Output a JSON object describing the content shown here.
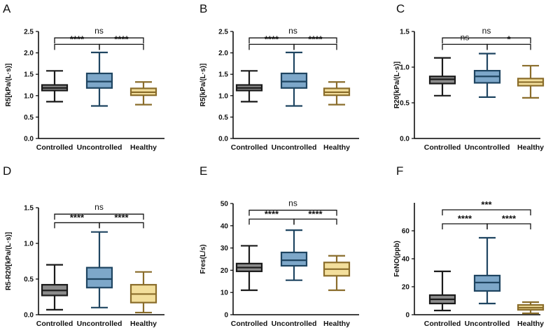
{
  "chart_data": [
    {
      "type": "box",
      "panel": "A",
      "ylabel": "R5[kPa/(L·s)]",
      "ylim": [
        0,
        2.5
      ],
      "yticks": [
        "0.0",
        "0.5",
        "1.0",
        "1.5",
        "2.0",
        "2.5"
      ],
      "categories": [
        "Controlled",
        "Uncontrolled",
        "Healthy"
      ],
      "colors": [
        {
          "fill": "#8c8c8c",
          "stroke": "#1a1a1a"
        },
        {
          "fill": "#7da7c9",
          "stroke": "#1f4561"
        },
        {
          "fill": "#f3df9c",
          "stroke": "#8a6d2b"
        }
      ],
      "boxes": [
        {
          "min": 0.86,
          "q1": 1.12,
          "median": 1.18,
          "q3": 1.25,
          "max": 1.58
        },
        {
          "min": 0.76,
          "q1": 1.18,
          "median": 1.33,
          "q3": 1.52,
          "max": 2.01
        },
        {
          "min": 0.79,
          "q1": 1.01,
          "median": 1.08,
          "q3": 1.17,
          "max": 1.32
        }
      ],
      "comparisons": [
        {
          "from": 0,
          "to": 2,
          "label": "ns",
          "y": 2.35
        },
        {
          "from": 0,
          "to": 1,
          "label": "****",
          "y": 2.2
        },
        {
          "from": 1,
          "to": 2,
          "label": "****",
          "y": 2.2
        }
      ]
    },
    {
      "type": "box",
      "panel": "B",
      "ylabel": "R5[kPa/(L·s)]",
      "ylim": [
        0,
        2.5
      ],
      "yticks": [
        "0.0",
        "0.5",
        "1.0",
        "1.5",
        "2.0",
        "2.5"
      ],
      "categories": [
        "Controlled",
        "Uncontrolled",
        "Healthy"
      ],
      "colors": [
        {
          "fill": "#8c8c8c",
          "stroke": "#1a1a1a"
        },
        {
          "fill": "#7da7c9",
          "stroke": "#1f4561"
        },
        {
          "fill": "#f3df9c",
          "stroke": "#8a6d2b"
        }
      ],
      "boxes": [
        {
          "min": 0.86,
          "q1": 1.12,
          "median": 1.18,
          "q3": 1.25,
          "max": 1.58
        },
        {
          "min": 0.76,
          "q1": 1.18,
          "median": 1.33,
          "q3": 1.52,
          "max": 2.01
        },
        {
          "min": 0.79,
          "q1": 1.01,
          "median": 1.08,
          "q3": 1.17,
          "max": 1.32
        }
      ],
      "comparisons": [
        {
          "from": 0,
          "to": 2,
          "label": "ns",
          "y": 2.35
        },
        {
          "from": 0,
          "to": 1,
          "label": "****",
          "y": 2.2
        },
        {
          "from": 1,
          "to": 2,
          "label": "****",
          "y": 2.2
        }
      ]
    },
    {
      "type": "box",
      "panel": "C",
      "ylabel": "R20[kPa/(L·s)]",
      "ylim": [
        0,
        1.5
      ],
      "yticks": [
        "0.0",
        "0.5",
        "1.0",
        "1.5"
      ],
      "categories": [
        "Controlled",
        "Uncontrolled",
        "Healthy"
      ],
      "colors": [
        {
          "fill": "#8c8c8c",
          "stroke": "#1a1a1a"
        },
        {
          "fill": "#7da7c9",
          "stroke": "#1f4561"
        },
        {
          "fill": "#f3df9c",
          "stroke": "#8a6d2b"
        }
      ],
      "boxes": [
        {
          "min": 0.6,
          "q1": 0.77,
          "median": 0.83,
          "q3": 0.87,
          "max": 1.13
        },
        {
          "min": 0.58,
          "q1": 0.78,
          "median": 0.87,
          "q3": 0.95,
          "max": 1.19
        },
        {
          "min": 0.57,
          "q1": 0.74,
          "median": 0.79,
          "q3": 0.84,
          "max": 1.02
        }
      ],
      "comparisons": [
        {
          "from": 0,
          "to": 2,
          "label": "ns",
          "y": 1.41
        },
        {
          "from": 0,
          "to": 1,
          "label": "ns",
          "y": 1.32
        },
        {
          "from": 1,
          "to": 2,
          "label": "*",
          "y": 1.32
        }
      ]
    },
    {
      "type": "box",
      "panel": "D",
      "ylabel": "R5-R20[kPa/(L·s)]",
      "ylim": [
        0,
        1.5
      ],
      "yticks": [
        "0.0",
        "0.5",
        "1.0",
        "1.5"
      ],
      "categories": [
        "Controlled",
        "Uncontrolled",
        "Healthy"
      ],
      "colors": [
        {
          "fill": "#8c8c8c",
          "stroke": "#1a1a1a"
        },
        {
          "fill": "#7da7c9",
          "stroke": "#1f4561"
        },
        {
          "fill": "#f3df9c",
          "stroke": "#8a6d2b"
        }
      ],
      "boxes": [
        {
          "min": 0.07,
          "q1": 0.27,
          "median": 0.34,
          "q3": 0.42,
          "max": 0.7
        },
        {
          "min": 0.1,
          "q1": 0.38,
          "median": 0.5,
          "q3": 0.66,
          "max": 1.16
        },
        {
          "min": 0.03,
          "q1": 0.17,
          "median": 0.29,
          "q3": 0.42,
          "max": 0.6
        }
      ],
      "comparisons": [
        {
          "from": 0,
          "to": 2,
          "label": "ns",
          "y": 1.41
        },
        {
          "from": 0,
          "to": 1,
          "label": "****",
          "y": 1.29
        },
        {
          "from": 1,
          "to": 2,
          "label": "****",
          "y": 1.29
        }
      ]
    },
    {
      "type": "box",
      "panel": "E",
      "ylabel": "Fres(L/s)",
      "ylim": [
        0,
        50
      ],
      "yticks": [
        "0",
        "10",
        "20",
        "30",
        "40",
        "50"
      ],
      "categories": [
        "Controlled",
        "Uncontrolled",
        "Healthy"
      ],
      "colors": [
        {
          "fill": "#8c8c8c",
          "stroke": "#1a1a1a"
        },
        {
          "fill": "#7da7c9",
          "stroke": "#1f4561"
        },
        {
          "fill": "#f3df9c",
          "stroke": "#8a6d2b"
        }
      ],
      "boxes": [
        {
          "min": 11,
          "q1": 19.5,
          "median": 21.2,
          "q3": 23,
          "max": 31
        },
        {
          "min": 15.5,
          "q1": 22,
          "median": 24.5,
          "q3": 28,
          "max": 38
        },
        {
          "min": 11,
          "q1": 17.5,
          "median": 20.5,
          "q3": 23.5,
          "max": 26.5
        }
      ],
      "comparisons": [
        {
          "from": 0,
          "to": 2,
          "label": "ns",
          "y": 47
        },
        {
          "from": 0,
          "to": 1,
          "label": "****",
          "y": 43
        },
        {
          "from": 1,
          "to": 2,
          "label": "****",
          "y": 43
        }
      ]
    },
    {
      "type": "box",
      "panel": "F",
      "ylabel": "FeNO(ppb)",
      "ylim": [
        0,
        80
      ],
      "yticks": [
        "0",
        "20",
        "40",
        "60"
      ],
      "categories": [
        "Controlled",
        "Uncontrolled",
        "Healthy"
      ],
      "colors": [
        {
          "fill": "#8c8c8c",
          "stroke": "#1a1a1a"
        },
        {
          "fill": "#7da7c9",
          "stroke": "#1f4561"
        },
        {
          "fill": "#f3df9c",
          "stroke": "#8a6d2b"
        }
      ],
      "boxes": [
        {
          "min": 3,
          "q1": 8,
          "median": 11,
          "q3": 14,
          "max": 31
        },
        {
          "min": 8,
          "q1": 17,
          "median": 23,
          "q3": 28,
          "max": 55
        },
        {
          "min": 1,
          "q1": 3.5,
          "median": 5,
          "q3": 7,
          "max": 9
        }
      ],
      "comparisons": [
        {
          "from": 0,
          "to": 2,
          "label": "***",
          "y": 75
        },
        {
          "from": 0,
          "to": 1,
          "label": "****",
          "y": 65
        },
        {
          "from": 1,
          "to": 2,
          "label": "****",
          "y": 65
        }
      ]
    }
  ]
}
